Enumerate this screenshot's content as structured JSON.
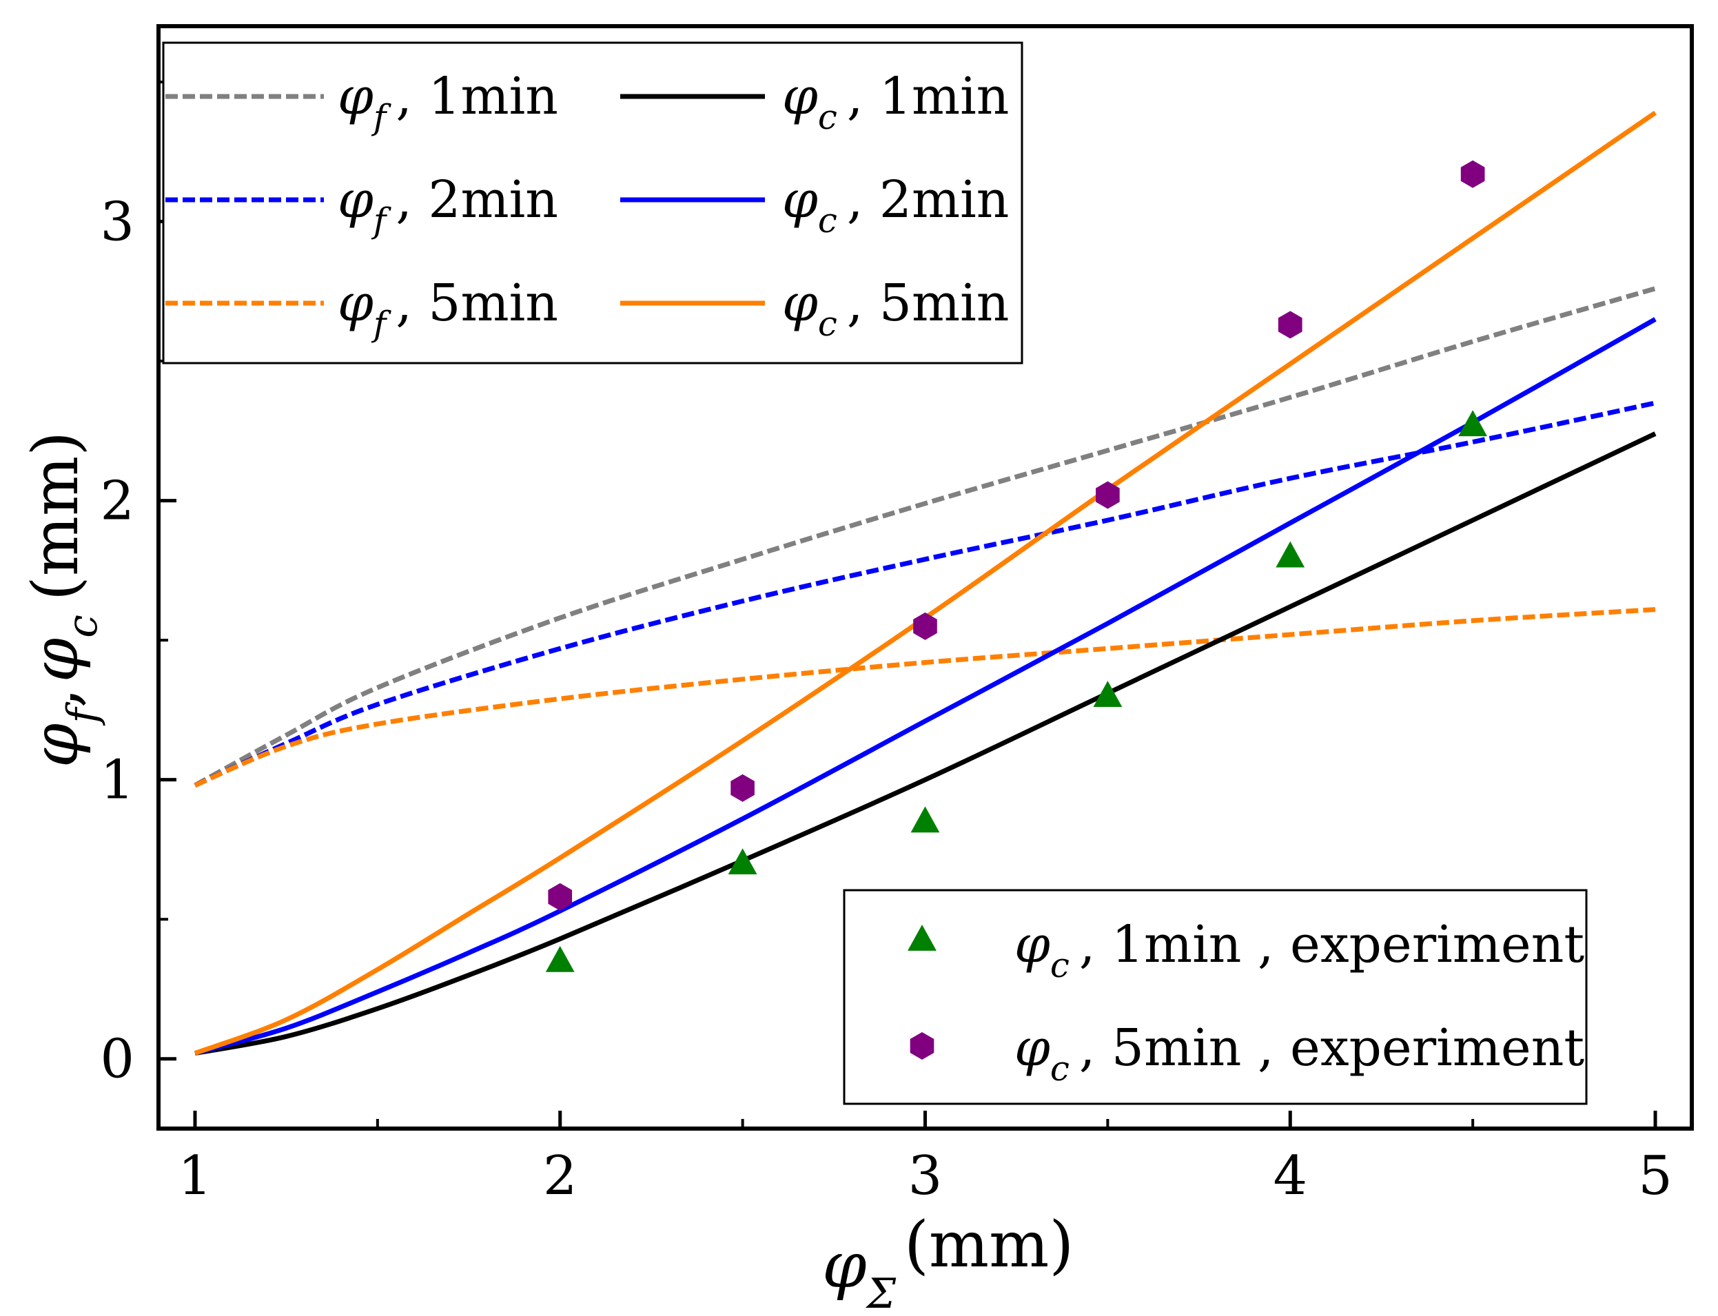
{
  "chart_data": {
    "type": "line",
    "x_axis": {
      "label_symbol": "φ",
      "label_subscript": "Σ",
      "label_unit": "(mm)",
      "range": [
        0.9,
        5.1
      ],
      "ticks": [
        1,
        2,
        3,
        4,
        5
      ],
      "tick_labels": [
        "1",
        "2",
        "3",
        "4",
        "5"
      ],
      "minor_ticks": [
        1.5,
        2.5,
        3.5,
        4.5
      ]
    },
    "y_axis": {
      "label_symbol_1": "φ",
      "label_subscript_1": "f",
      "label_separator": ",",
      "label_symbol_2": "φ",
      "label_subscript_2": "c",
      "label_unit": "(mm)",
      "range": [
        -0.25,
        3.7
      ],
      "ticks": [
        0,
        1,
        2,
        3
      ],
      "tick_labels": [
        "0",
        "1",
        "2",
        "3"
      ],
      "minor_ticks": [
        0.5,
        1.5,
        2.5,
        3.5
      ]
    },
    "legend_lines": {
      "placement": "top-left",
      "entries": [
        {
          "symbol": "φ",
          "sub": "f",
          "suffix": ", 1min",
          "style": "dashed",
          "color": "#808080"
        },
        {
          "symbol": "φ",
          "sub": "c",
          "suffix": ", 1min",
          "style": "solid",
          "color": "#000000"
        },
        {
          "symbol": "φ",
          "sub": "f",
          "suffix": ", 2min",
          "style": "dashed",
          "color": "#0000ff"
        },
        {
          "symbol": "φ",
          "sub": "c",
          "suffix": ", 2min",
          "style": "solid",
          "color": "#0000ff"
        },
        {
          "symbol": "φ",
          "sub": "f",
          "suffix": ", 5min",
          "style": "dashed",
          "color": "#ff8000"
        },
        {
          "symbol": "φ",
          "sub": "c",
          "suffix": ", 5min",
          "style": "solid",
          "color": "#ff8000"
        }
      ]
    },
    "legend_markers": {
      "placement": "bottom-right",
      "entries": [
        {
          "symbol": "φ",
          "sub": "c",
          "suffix": ", 1min , experiment",
          "marker": "triangle",
          "color": "#008000"
        },
        {
          "symbol": "φ",
          "sub": "c",
          "suffix": ", 5min , experiment",
          "marker": "hexagon",
          "color": "#800080"
        }
      ]
    },
    "series": [
      {
        "name": "φf, 1min",
        "style": "dashed",
        "color": "#808080",
        "x": [
          1,
          1.25,
          1.5,
          2,
          2.5,
          3,
          3.5,
          4,
          4.5,
          5
        ],
        "y": [
          0.98,
          1.16,
          1.33,
          1.58,
          1.79,
          1.99,
          2.18,
          2.37,
          2.57,
          2.76
        ]
      },
      {
        "name": "φf, 2min",
        "style": "dashed",
        "color": "#0000ff",
        "x": [
          1,
          1.25,
          1.5,
          2,
          2.5,
          3,
          3.5,
          4,
          4.5,
          5
        ],
        "y": [
          0.98,
          1.13,
          1.27,
          1.47,
          1.64,
          1.79,
          1.93,
          2.08,
          2.21,
          2.35
        ]
      },
      {
        "name": "φf, 5min",
        "style": "dashed",
        "color": "#ff8000",
        "x": [
          1,
          1.25,
          1.5,
          2,
          2.5,
          3,
          3.5,
          4,
          4.5,
          5
        ],
        "y": [
          0.98,
          1.12,
          1.2,
          1.29,
          1.36,
          1.42,
          1.47,
          1.52,
          1.57,
          1.61
        ]
      },
      {
        "name": "φc, 1min",
        "style": "solid",
        "color": "#000000",
        "x": [
          1,
          1.25,
          1.5,
          1.75,
          2,
          2.5,
          3,
          3.5,
          4,
          4.5,
          5
        ],
        "y": [
          0.02,
          0.08,
          0.18,
          0.3,
          0.43,
          0.71,
          1.0,
          1.31,
          1.62,
          1.93,
          2.24
        ]
      },
      {
        "name": "φc, 2min",
        "style": "solid",
        "color": "#0000ff",
        "x": [
          1,
          1.25,
          1.5,
          1.75,
          2,
          2.5,
          3,
          3.5,
          4,
          4.5,
          5
        ],
        "y": [
          0.02,
          0.11,
          0.24,
          0.38,
          0.53,
          0.86,
          1.21,
          1.56,
          1.92,
          2.28,
          2.65
        ]
      },
      {
        "name": "φc, 5min",
        "style": "solid",
        "color": "#ff8000",
        "x": [
          1,
          1.25,
          1.5,
          1.75,
          2,
          2.5,
          3,
          3.5,
          4,
          4.5,
          5
        ],
        "y": [
          0.02,
          0.14,
          0.32,
          0.52,
          0.72,
          1.14,
          1.58,
          2.04,
          2.49,
          2.94,
          3.39
        ]
      }
    ],
    "points": [
      {
        "name": "φc, 1min, experiment",
        "marker": "triangle",
        "color": "#008000",
        "x": [
          2,
          2.5,
          3,
          3.5,
          4,
          4.5
        ],
        "y": [
          0.35,
          0.7,
          0.85,
          1.3,
          1.8,
          2.27
        ]
      },
      {
        "name": "φc, 5min, experiment",
        "marker": "hexagon",
        "color": "#800080",
        "x": [
          2,
          2.5,
          3,
          3.5,
          4,
          4.5
        ],
        "y": [
          0.58,
          0.97,
          1.55,
          2.02,
          2.63,
          3.17
        ]
      }
    ]
  }
}
